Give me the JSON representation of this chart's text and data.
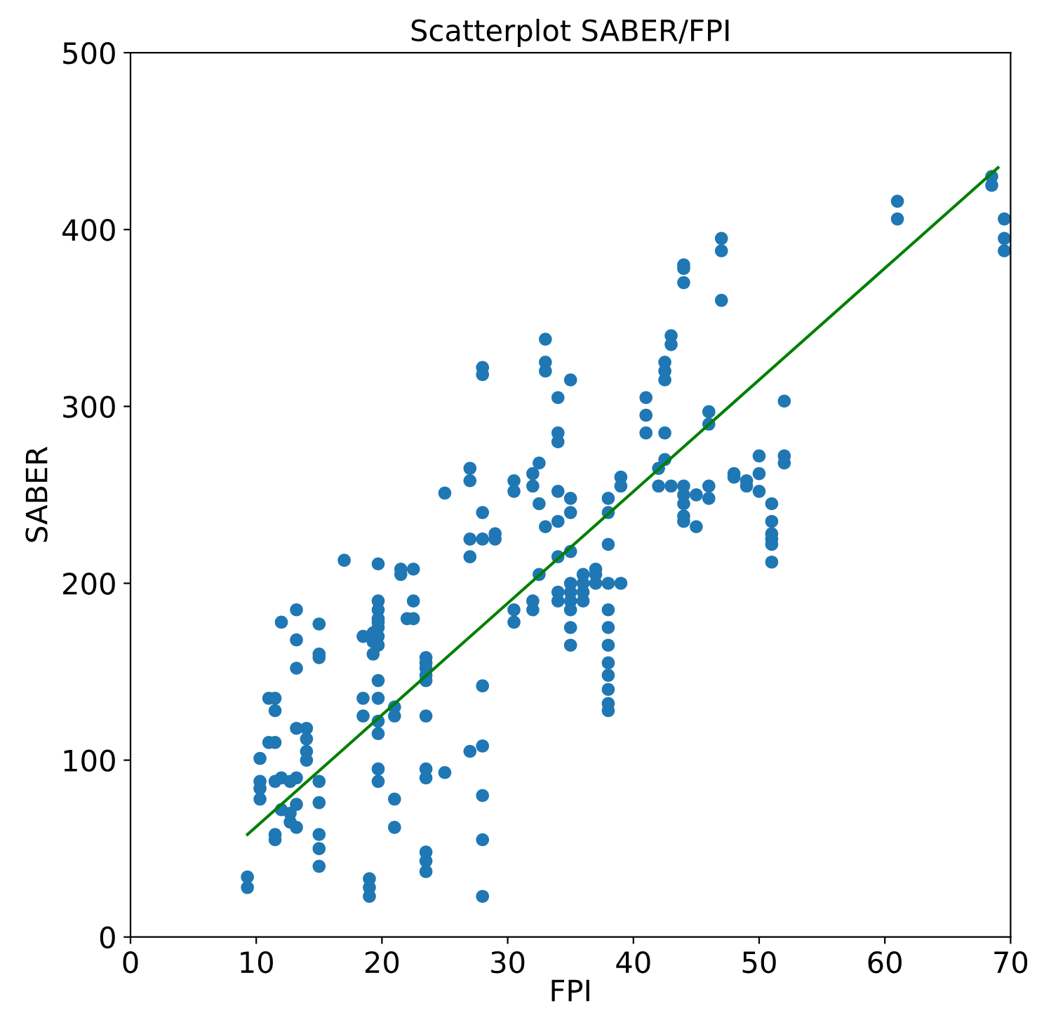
{
  "chart_data": {
    "type": "scatter",
    "title": "Scatterplot SABER/FPI",
    "xlabel": "FPI",
    "ylabel": "SABER",
    "xlim": [
      0,
      70
    ],
    "ylim": [
      0,
      500
    ],
    "xticks": [
      0,
      10,
      20,
      30,
      40,
      50,
      60,
      70
    ],
    "yticks": [
      0,
      100,
      200,
      300,
      400,
      500
    ],
    "grid": false,
    "marker": "circle",
    "series": [
      {
        "color": "#1f77b4",
        "x": [
          9.3,
          9.3,
          10.3,
          10.3,
          10.3,
          10.3,
          11,
          11,
          11.5,
          11.5,
          11.5,
          11.5,
          11.5,
          11.5,
          12,
          12,
          12,
          12.7,
          12.7,
          12.7,
          13.2,
          13.2,
          13.2,
          13.2,
          13.2,
          13.2,
          13.2,
          14,
          14,
          14,
          14,
          15,
          15,
          15,
          15,
          15,
          15,
          15,
          15,
          17,
          18.5,
          18.5,
          18.5,
          19,
          19,
          19,
          19.3,
          19.3,
          19.3,
          19.7,
          19.7,
          19.7,
          19.7,
          19.7,
          19.7,
          19.7,
          19.7,
          19.7,
          19.7,
          19.7,
          19.7,
          19.7,
          19.7,
          21,
          21,
          21,
          21,
          21.5,
          21.5,
          22,
          22.5,
          22.5,
          22.5,
          23.5,
          23.5,
          23.5,
          23.5,
          23.5,
          23.5,
          23.5,
          23.5,
          23.5,
          23.5,
          23.5,
          25,
          25,
          27,
          27,
          27,
          27,
          27,
          28,
          28,
          28,
          28,
          28,
          28,
          28,
          28,
          28,
          29,
          29,
          30.5,
          30.5,
          30.5,
          30.5,
          32,
          32,
          32,
          32,
          32.5,
          32.5,
          32.5,
          33,
          33,
          33,
          33,
          34,
          34,
          34,
          34,
          34,
          34,
          34,
          34,
          35,
          35,
          35,
          35,
          35,
          35,
          35,
          35,
          35,
          35,
          36,
          36,
          36,
          36,
          37,
          37,
          37,
          38,
          38,
          38,
          38,
          38,
          38,
          38,
          38,
          38,
          38,
          38,
          38,
          39,
          39,
          39,
          41,
          41,
          41,
          42,
          42,
          42.5,
          42.5,
          42.5,
          42.5,
          42.5,
          43,
          43,
          43,
          44,
          44,
          44,
          44,
          44,
          44,
          44,
          44,
          45,
          45,
          46,
          46,
          46,
          46,
          47,
          47,
          47,
          48,
          48,
          49,
          49,
          50,
          50,
          50,
          51,
          51,
          51,
          51,
          51,
          51,
          52,
          52,
          52,
          61,
          61,
          68.5,
          68.5,
          69.5,
          69.5,
          69.5
        ],
        "values": [
          34,
          28,
          101,
          88,
          84,
          78,
          135,
          110,
          135,
          128,
          110,
          88,
          58,
          55,
          178,
          90,
          72,
          88,
          70,
          65,
          185,
          168,
          152,
          118,
          90,
          75,
          62,
          118,
          112,
          105,
          100,
          177,
          160,
          158,
          88,
          76,
          58,
          50,
          40,
          213,
          170,
          135,
          125,
          33,
          28,
          23,
          172,
          167,
          160,
          211,
          190,
          185,
          180,
          178,
          175,
          170,
          165,
          145,
          135,
          122,
          115,
          95,
          88,
          130,
          125,
          78,
          62,
          208,
          205,
          180,
          208,
          190,
          180,
          158,
          155,
          152,
          148,
          145,
          125,
          95,
          90,
          48,
          43,
          37,
          251,
          93,
          265,
          258,
          225,
          215,
          105,
          322,
          318,
          240,
          225,
          142,
          108,
          80,
          55,
          23,
          228,
          225,
          258,
          252,
          185,
          178,
          262,
          255,
          190,
          185,
          268,
          245,
          205,
          338,
          325,
          320,
          232,
          305,
          285,
          280,
          252,
          235,
          215,
          195,
          190,
          315,
          248,
          240,
          218,
          200,
          195,
          190,
          185,
          175,
          165,
          205,
          200,
          195,
          190,
          208,
          205,
          200,
          248,
          240,
          222,
          200,
          185,
          175,
          165,
          155,
          148,
          140,
          132,
          128,
          260,
          255,
          200,
          305,
          295,
          285,
          265,
          255,
          325,
          320,
          315,
          285,
          270,
          340,
          335,
          255,
          380,
          378,
          370,
          255,
          250,
          245,
          238,
          235,
          250,
          232,
          297,
          290,
          255,
          248,
          395,
          388,
          360,
          262,
          260,
          258,
          255,
          272,
          262,
          252,
          245,
          235,
          228,
          225,
          222,
          212,
          303,
          272,
          268,
          416,
          406,
          430,
          425,
          406,
          395,
          388
        ]
      },
      {
        "type": "line",
        "color": "#008000",
        "marker": "none",
        "x": [
          9.3,
          69
        ],
        "values": [
          58,
          435
        ]
      }
    ]
  }
}
